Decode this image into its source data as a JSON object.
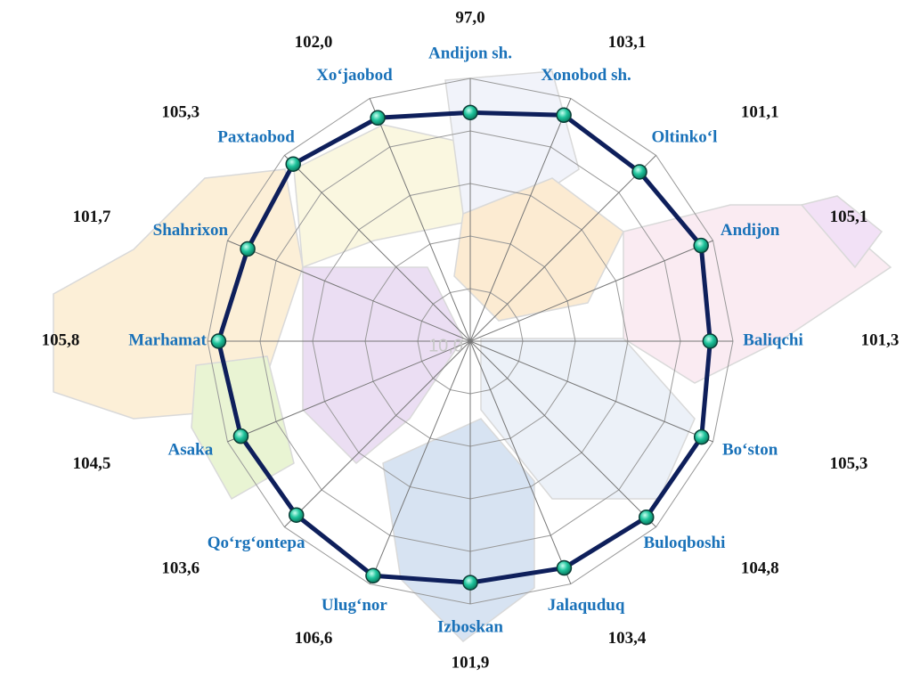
{
  "chart_data": {
    "type": "radar",
    "categories": [
      "Andijon sh.",
      "Xonobod sh.",
      "Oltinko‘l",
      "Andijon",
      "Baliqchi",
      "Bo‘ston",
      "Buloqboshi",
      "Jalaquduq",
      "Izboskan",
      "Ulug‘nor",
      "Qo‘rg‘ontepa",
      "Asaka",
      "Marhamat",
      "Shahrixon",
      "Paxtaobod",
      "Xo‘jaobod"
    ],
    "values": [
      97.0,
      103.1,
      101.1,
      105.1,
      101.3,
      105.3,
      104.8,
      103.4,
      101.9,
      106.6,
      103.6,
      104.5,
      105.8,
      101.7,
      105.3,
      102.0
    ],
    "value_labels": [
      "97,0",
      "103,1",
      "101,1",
      "105,1",
      "101,3",
      "105,3",
      "104,8",
      "103,4",
      "101,9",
      "106,6",
      "103,6",
      "104,5",
      "105,8",
      "101,7",
      "105,3",
      "102,0"
    ],
    "color": "#0e1f5b",
    "marker_color": "#1fc49c",
    "rlim": [
      10,
      110
    ],
    "rticks": [
      {
        "value": 10,
        "label": "10,0"
      }
    ],
    "grid": true
  }
}
